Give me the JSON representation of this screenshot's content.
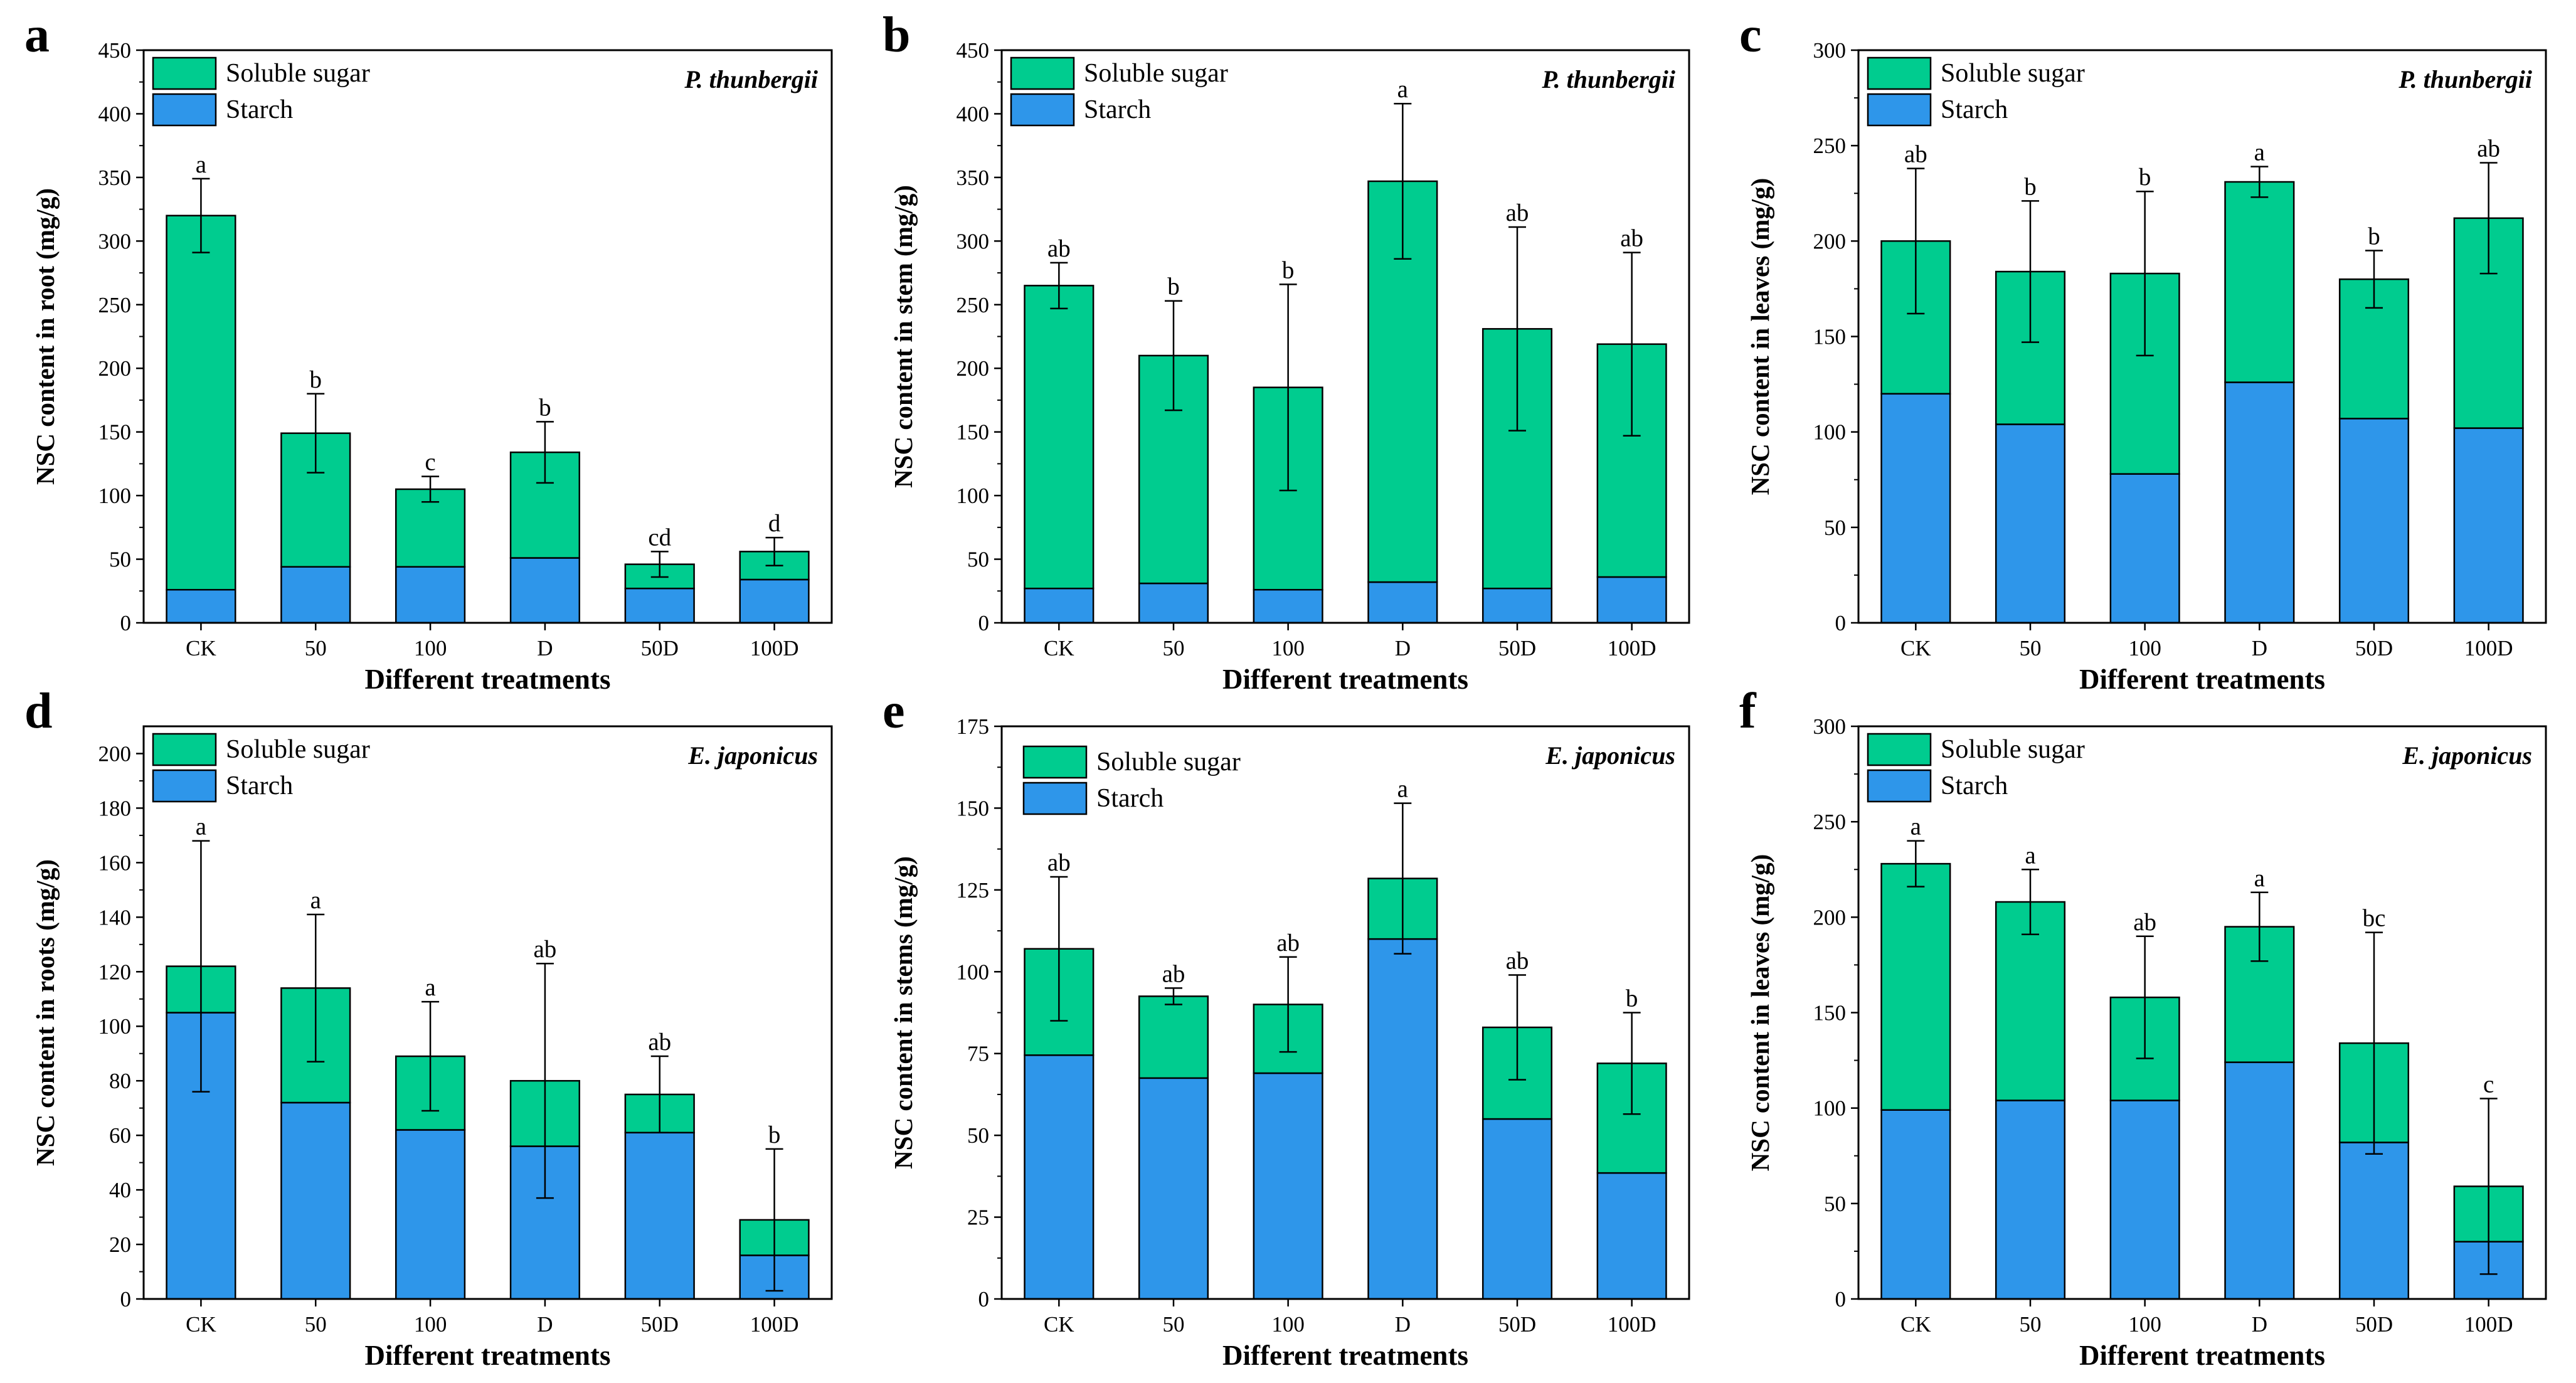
{
  "colors": {
    "starch": "#2e96ea",
    "soluble_sugar": "#00cc8f",
    "axis": "#000000"
  },
  "chart_data": [
    {
      "type": "bar",
      "stacked": true,
      "panel": "a",
      "species": "P. thunbergii",
      "xlabel": "Different treatments",
      "ylabel": "NSC content in root (mg/g)",
      "ylim": [
        0,
        450
      ],
      "yticks": [
        "0",
        "50",
        "100",
        "150",
        "200",
        "250",
        "300",
        "350",
        "400",
        "450"
      ],
      "categories": [
        "CK",
        "50",
        "100",
        "D",
        "50D",
        "100D"
      ],
      "legend": [
        "Soluble sugar",
        "Starch"
      ],
      "series": [
        {
          "name": "Starch",
          "values": [
            26,
            44,
            44,
            51,
            27,
            34
          ]
        },
        {
          "name": "Soluble sugar",
          "values": [
            294,
            105,
            61,
            83,
            19,
            22
          ]
        }
      ],
      "totals": [
        320,
        149,
        105,
        134,
        46,
        56
      ],
      "errors": [
        29,
        31,
        10,
        24,
        10,
        11
      ],
      "letters": [
        "a",
        "b",
        "c",
        "b",
        "cd",
        "d"
      ]
    },
    {
      "type": "bar",
      "stacked": true,
      "panel": "b",
      "species": "P. thunbergii",
      "xlabel": "Different treatments",
      "ylabel": "NSC content in stem (mg/g)",
      "ylim": [
        0,
        450
      ],
      "yticks": [
        "0",
        "50",
        "100",
        "150",
        "200",
        "250",
        "300",
        "350",
        "400",
        "450"
      ],
      "categories": [
        "CK",
        "50",
        "100",
        "D",
        "50D",
        "100D"
      ],
      "legend": [
        "Soluble sugar",
        "Starch"
      ],
      "series": [
        {
          "name": "Starch",
          "values": [
            27,
            31,
            26,
            32,
            27,
            36
          ]
        },
        {
          "name": "Soluble sugar",
          "values": [
            238,
            179,
            159,
            315,
            204,
            183
          ]
        }
      ],
      "totals": [
        265,
        210,
        185,
        347,
        231,
        219
      ],
      "errors": [
        18,
        43,
        81,
        61,
        80,
        72
      ],
      "letters": [
        "ab",
        "b",
        "b",
        "a",
        "ab",
        "ab"
      ]
    },
    {
      "type": "bar",
      "stacked": true,
      "panel": "c",
      "species": "P. thunbergii",
      "xlabel": "Different treatments",
      "ylabel": "NSC content in leaves (mg/g)",
      "ylim": [
        0,
        300
      ],
      "yticks": [
        "0",
        "50",
        "100",
        "150",
        "200",
        "250",
        "300"
      ],
      "categories": [
        "CK",
        "50",
        "100",
        "D",
        "50D",
        "100D"
      ],
      "legend": [
        "Soluble sugar",
        "Starch"
      ],
      "series": [
        {
          "name": "Starch",
          "values": [
            120,
            104,
            78,
            126,
            107,
            102
          ]
        },
        {
          "name": "Soluble sugar",
          "values": [
            80,
            80,
            105,
            105,
            73,
            110
          ]
        }
      ],
      "totals": [
        200,
        184,
        183,
        231,
        180,
        212
      ],
      "errors": [
        38,
        37,
        43,
        8,
        15,
        29
      ],
      "letters": [
        "ab",
        "b",
        "b",
        "a",
        "b",
        "ab"
      ]
    },
    {
      "type": "bar",
      "stacked": true,
      "panel": "d",
      "species": "E. japonicus",
      "xlabel": "Different treatments",
      "ylabel": "NSC content in roots (mg/g)",
      "ylim": [
        0,
        210
      ],
      "yticks": [
        "0",
        "20",
        "40",
        "60",
        "80",
        "100",
        "120",
        "140",
        "160",
        "180",
        "200"
      ],
      "categories": [
        "CK",
        "50",
        "100",
        "D",
        "50D",
        "100D"
      ],
      "legend": [
        "Soluble sugar",
        "Starch"
      ],
      "series": [
        {
          "name": "Starch",
          "values": [
            105,
            72,
            62,
            56,
            61,
            16
          ]
        },
        {
          "name": "Soluble sugar",
          "values": [
            17,
            42,
            27,
            24,
            14,
            13
          ]
        }
      ],
      "totals": [
        122,
        114,
        89,
        80,
        75,
        29
      ],
      "errors": [
        46,
        27,
        20,
        43,
        14,
        26
      ],
      "letters": [
        "a",
        "a",
        "a",
        "ab",
        "ab",
        "b"
      ]
    },
    {
      "type": "bar",
      "stacked": true,
      "panel": "e",
      "species": "E. japonicus",
      "xlabel": "Different treatments",
      "ylabel": "NSC content in stems (mg/g)",
      "ylim": [
        0,
        175
      ],
      "yticks": [
        "0",
        "25",
        "50",
        "75",
        "100",
        "125",
        "150",
        "175"
      ],
      "categories": [
        "CK",
        "50",
        "100",
        "D",
        "50D",
        "100D"
      ],
      "legend": [
        "Soluble sugar",
        "Starch"
      ],
      "series": [
        {
          "name": "Starch",
          "values": [
            74.5,
            67.5,
            69,
            110,
            55,
            38.5
          ]
        },
        {
          "name": "Soluble sugar",
          "values": [
            32.5,
            25,
            21,
            18.5,
            28,
            33.5
          ]
        }
      ],
      "totals": [
        107,
        92.5,
        90,
        128.5,
        83,
        72
      ],
      "errors": [
        22,
        2.5,
        14.5,
        23,
        16,
        15.5
      ],
      "letters": [
        "ab",
        "ab",
        "ab",
        "a",
        "ab",
        "b"
      ]
    },
    {
      "type": "bar",
      "stacked": true,
      "panel": "f",
      "species": "E. japonicus",
      "xlabel": "Different treatments",
      "ylabel": "NSC content in leaves (mg/g)",
      "ylim": [
        0,
        300
      ],
      "yticks": [
        "0",
        "50",
        "100",
        "150",
        "200",
        "250",
        "300"
      ],
      "categories": [
        "CK",
        "50",
        "100",
        "D",
        "50D",
        "100D"
      ],
      "legend": [
        "Soluble sugar",
        "Starch"
      ],
      "series": [
        {
          "name": "Starch",
          "values": [
            99,
            104,
            104,
            124,
            82,
            30
          ]
        },
        {
          "name": "Soluble sugar",
          "values": [
            129,
            104,
            54,
            71,
            52,
            29
          ]
        }
      ],
      "totals": [
        228,
        208,
        158,
        195,
        134,
        59
      ],
      "errors": [
        12,
        17,
        32,
        18,
        58,
        46
      ],
      "letters": [
        "a",
        "a",
        "ab",
        "a",
        "bc",
        "c"
      ]
    }
  ]
}
